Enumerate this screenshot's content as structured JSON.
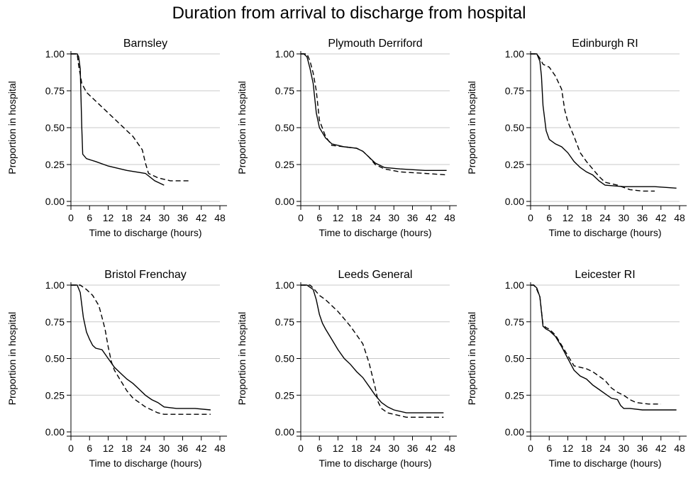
{
  "title": "Duration from arrival to discharge from hospital",
  "colors": {
    "line": "#000000",
    "grid": "#c8c8c8",
    "axis": "#000000"
  },
  "chart_data": [
    {
      "type": "line",
      "title": "Barnsley",
      "xlabel": "Time to discharge (hours)",
      "ylabel": "Proportion in hospital",
      "xlim": [
        0,
        48
      ],
      "ylim": [
        0,
        1
      ],
      "x_ticks": [
        "0",
        "6",
        "12",
        "18",
        "24",
        "30",
        "36",
        "42",
        "48"
      ],
      "y_ticks": [
        "0.00",
        "0.25",
        "0.50",
        "0.75",
        "1.00"
      ],
      "grid": "horizontal",
      "series": [
        {
          "style": "solid",
          "points": [
            [
              0,
              1
            ],
            [
              2,
              1
            ],
            [
              2.5,
              0.98
            ],
            [
              3,
              0.9
            ],
            [
              3.5,
              0.5
            ],
            [
              3.8,
              0.32
            ],
            [
              5,
              0.29
            ],
            [
              8,
              0.27
            ],
            [
              12,
              0.24
            ],
            [
              18,
              0.21
            ],
            [
              24,
              0.19
            ],
            [
              27,
              0.14
            ],
            [
              30,
              0.11
            ]
          ]
        },
        {
          "style": "dashed",
          "points": [
            [
              0,
              1
            ],
            [
              2,
              1
            ],
            [
              2.5,
              0.92
            ],
            [
              3.5,
              0.8
            ],
            [
              5,
              0.74
            ],
            [
              8,
              0.68
            ],
            [
              12,
              0.6
            ],
            [
              18,
              0.48
            ],
            [
              20,
              0.44
            ],
            [
              23,
              0.35
            ],
            [
              24,
              0.26
            ],
            [
              25,
              0.19
            ],
            [
              28,
              0.16
            ],
            [
              32,
              0.14
            ],
            [
              38,
              0.14
            ]
          ]
        }
      ]
    },
    {
      "type": "line",
      "title": "Plymouth Derriford",
      "xlabel": "Time to discharge (hours)",
      "ylabel": "Proportion in hospital",
      "xlim": [
        0,
        48
      ],
      "ylim": [
        0,
        1
      ],
      "x_ticks": [
        "0",
        "6",
        "12",
        "18",
        "24",
        "30",
        "36",
        "42",
        "48"
      ],
      "y_ticks": [
        "0.00",
        "0.25",
        "0.50",
        "0.75",
        "1.00"
      ],
      "grid": "horizontal",
      "series": [
        {
          "style": "solid",
          "points": [
            [
              0,
              1
            ],
            [
              1,
              1
            ],
            [
              2,
              0.98
            ],
            [
              3,
              0.9
            ],
            [
              4,
              0.8
            ],
            [
              5,
              0.6
            ],
            [
              6,
              0.5
            ],
            [
              8,
              0.43
            ],
            [
              10,
              0.39
            ],
            [
              14,
              0.37
            ],
            [
              18,
              0.36
            ],
            [
              20,
              0.34
            ],
            [
              22,
              0.3
            ],
            [
              24,
              0.26
            ],
            [
              27,
              0.23
            ],
            [
              32,
              0.22
            ],
            [
              40,
              0.21
            ],
            [
              47,
              0.21
            ]
          ]
        },
        {
          "style": "dashed",
          "points": [
            [
              0,
              1
            ],
            [
              2,
              1
            ],
            [
              3,
              0.95
            ],
            [
              4,
              0.87
            ],
            [
              5,
              0.75
            ],
            [
              6,
              0.55
            ],
            [
              8,
              0.44
            ],
            [
              10,
              0.38
            ],
            [
              14,
              0.37
            ],
            [
              18,
              0.36
            ],
            [
              20,
              0.34
            ],
            [
              22,
              0.3
            ],
            [
              24,
              0.25
            ],
            [
              27,
              0.22
            ],
            [
              32,
              0.2
            ],
            [
              40,
              0.19
            ],
            [
              47,
              0.18
            ]
          ]
        }
      ]
    },
    {
      "type": "line",
      "title": "Edinburgh RI",
      "xlabel": "Time to discharge (hours)",
      "ylabel": "Proportion in hospital",
      "xlim": [
        0,
        48
      ],
      "ylim": [
        0,
        1
      ],
      "x_ticks": [
        "0",
        "6",
        "12",
        "18",
        "24",
        "30",
        "36",
        "42",
        "48"
      ],
      "y_ticks": [
        "0.00",
        "0.25",
        "0.50",
        "0.75",
        "1.00"
      ],
      "grid": "horizontal",
      "series": [
        {
          "style": "solid",
          "points": [
            [
              0,
              1
            ],
            [
              2,
              1
            ],
            [
              3,
              0.95
            ],
            [
              3.5,
              0.85
            ],
            [
              4,
              0.65
            ],
            [
              5,
              0.48
            ],
            [
              6,
              0.42
            ],
            [
              8,
              0.39
            ],
            [
              10,
              0.37
            ],
            [
              12,
              0.33
            ],
            [
              14,
              0.27
            ],
            [
              16,
              0.23
            ],
            [
              18,
              0.2
            ],
            [
              20,
              0.18
            ],
            [
              22,
              0.14
            ],
            [
              24,
              0.11
            ],
            [
              30,
              0.1
            ],
            [
              40,
              0.1
            ],
            [
              47,
              0.09
            ]
          ]
        },
        {
          "style": "dashed",
          "points": [
            [
              0,
              1
            ],
            [
              2,
              1
            ],
            [
              3,
              0.97
            ],
            [
              4,
              0.93
            ],
            [
              6,
              0.91
            ],
            [
              8,
              0.85
            ],
            [
              10,
              0.76
            ],
            [
              11,
              0.62
            ],
            [
              12,
              0.54
            ],
            [
              14,
              0.44
            ],
            [
              16,
              0.33
            ],
            [
              18,
              0.27
            ],
            [
              20,
              0.22
            ],
            [
              22,
              0.17
            ],
            [
              24,
              0.13
            ],
            [
              28,
              0.11
            ],
            [
              32,
              0.08
            ],
            [
              36,
              0.07
            ],
            [
              40,
              0.07
            ]
          ]
        }
      ]
    },
    {
      "type": "line",
      "title": "Bristol Frenchay",
      "xlabel": "Time to discharge (hours)",
      "ylabel": "Proportion in hospital",
      "xlim": [
        0,
        48
      ],
      "ylim": [
        0,
        1
      ],
      "x_ticks": [
        "0",
        "6",
        "12",
        "18",
        "24",
        "30",
        "36",
        "42",
        "48"
      ],
      "y_ticks": [
        "0.00",
        "0.25",
        "0.50",
        "0.75",
        "1.00"
      ],
      "grid": "horizontal",
      "series": [
        {
          "style": "solid",
          "points": [
            [
              0,
              1
            ],
            [
              2,
              1
            ],
            [
              3,
              0.95
            ],
            [
              4,
              0.78
            ],
            [
              5,
              0.68
            ],
            [
              6,
              0.63
            ],
            [
              7,
              0.59
            ],
            [
              8,
              0.57
            ],
            [
              10,
              0.56
            ],
            [
              12,
              0.5
            ],
            [
              14,
              0.44
            ],
            [
              16,
              0.4
            ],
            [
              18,
              0.36
            ],
            [
              20,
              0.33
            ],
            [
              22,
              0.29
            ],
            [
              24,
              0.25
            ],
            [
              26,
              0.22
            ],
            [
              28,
              0.2
            ],
            [
              30,
              0.17
            ],
            [
              34,
              0.16
            ],
            [
              40,
              0.16
            ],
            [
              45,
              0.15
            ]
          ]
        },
        {
          "style": "dashed",
          "points": [
            [
              0,
              1
            ],
            [
              3,
              1
            ],
            [
              5,
              0.97
            ],
            [
              7,
              0.93
            ],
            [
              9,
              0.86
            ],
            [
              10,
              0.78
            ],
            [
              11,
              0.7
            ],
            [
              12,
              0.58
            ],
            [
              13,
              0.48
            ],
            [
              14,
              0.42
            ],
            [
              16,
              0.35
            ],
            [
              18,
              0.28
            ],
            [
              20,
              0.23
            ],
            [
              22,
              0.2
            ],
            [
              24,
              0.17
            ],
            [
              26,
              0.15
            ],
            [
              28,
              0.13
            ],
            [
              30,
              0.12
            ],
            [
              36,
              0.12
            ],
            [
              45,
              0.12
            ]
          ]
        }
      ]
    },
    {
      "type": "line",
      "title": "Leeds General",
      "xlabel": "Time to discharge (hours)",
      "ylabel": "Proportion in hospital",
      "xlim": [
        0,
        48
      ],
      "ylim": [
        0,
        1
      ],
      "x_ticks": [
        "0",
        "6",
        "12",
        "18",
        "24",
        "30",
        "36",
        "42",
        "48"
      ],
      "y_ticks": [
        "0.00",
        "0.25",
        "0.50",
        "0.75",
        "1.00"
      ],
      "grid": "horizontal",
      "series": [
        {
          "style": "solid",
          "points": [
            [
              0,
              1
            ],
            [
              2,
              1
            ],
            [
              4,
              0.97
            ],
            [
              5,
              0.9
            ],
            [
              6,
              0.8
            ],
            [
              7,
              0.74
            ],
            [
              8,
              0.7
            ],
            [
              10,
              0.63
            ],
            [
              12,
              0.56
            ],
            [
              14,
              0.5
            ],
            [
              16,
              0.46
            ],
            [
              18,
              0.41
            ],
            [
              20,
              0.37
            ],
            [
              22,
              0.31
            ],
            [
              24,
              0.25
            ],
            [
              26,
              0.2
            ],
            [
              28,
              0.17
            ],
            [
              30,
              0.15
            ],
            [
              34,
              0.13
            ],
            [
              40,
              0.13
            ],
            [
              46,
              0.13
            ]
          ]
        },
        {
          "style": "dashed",
          "points": [
            [
              0,
              1
            ],
            [
              3,
              1
            ],
            [
              4,
              0.98
            ],
            [
              6,
              0.93
            ],
            [
              8,
              0.9
            ],
            [
              10,
              0.86
            ],
            [
              12,
              0.82
            ],
            [
              14,
              0.77
            ],
            [
              16,
              0.72
            ],
            [
              18,
              0.66
            ],
            [
              20,
              0.6
            ],
            [
              22,
              0.47
            ],
            [
              24,
              0.3
            ],
            [
              25,
              0.2
            ],
            [
              26,
              0.16
            ],
            [
              28,
              0.13
            ],
            [
              30,
              0.12
            ],
            [
              34,
              0.1
            ],
            [
              40,
              0.1
            ],
            [
              46,
              0.1
            ]
          ]
        }
      ]
    },
    {
      "type": "line",
      "title": "Leicester RI",
      "xlabel": "Time to discharge (hours)",
      "ylabel": "Proportion in hospital",
      "xlim": [
        0,
        48
      ],
      "ylim": [
        0,
        1
      ],
      "x_ticks": [
        "0",
        "6",
        "12",
        "18",
        "24",
        "30",
        "36",
        "42",
        "48"
      ],
      "y_ticks": [
        "0.00",
        "0.25",
        "0.50",
        "0.75",
        "1.00"
      ],
      "grid": "horizontal",
      "series": [
        {
          "style": "solid",
          "points": [
            [
              0,
              1
            ],
            [
              1,
              1
            ],
            [
              2,
              0.98
            ],
            [
              3,
              0.92
            ],
            [
              4,
              0.72
            ],
            [
              5,
              0.7
            ],
            [
              6,
              0.69
            ],
            [
              8,
              0.65
            ],
            [
              10,
              0.58
            ],
            [
              12,
              0.5
            ],
            [
              14,
              0.42
            ],
            [
              16,
              0.38
            ],
            [
              18,
              0.36
            ],
            [
              20,
              0.32
            ],
            [
              22,
              0.29
            ],
            [
              24,
              0.26
            ],
            [
              26,
              0.23
            ],
            [
              28,
              0.22
            ],
            [
              29,
              0.18
            ],
            [
              30,
              0.16
            ],
            [
              32,
              0.16
            ],
            [
              36,
              0.15
            ],
            [
              40,
              0.15
            ],
            [
              47,
              0.15
            ]
          ]
        },
        {
          "style": "dashed",
          "points": [
            [
              0,
              1
            ],
            [
              1,
              1
            ],
            [
              2,
              0.97
            ],
            [
              3,
              0.92
            ],
            [
              4,
              0.73
            ],
            [
              5,
              0.71
            ],
            [
              6,
              0.7
            ],
            [
              8,
              0.66
            ],
            [
              10,
              0.59
            ],
            [
              12,
              0.52
            ],
            [
              14,
              0.45
            ],
            [
              16,
              0.44
            ],
            [
              18,
              0.43
            ],
            [
              20,
              0.41
            ],
            [
              22,
              0.38
            ],
            [
              24,
              0.35
            ],
            [
              26,
              0.3
            ],
            [
              28,
              0.27
            ],
            [
              30,
              0.25
            ],
            [
              32,
              0.22
            ],
            [
              34,
              0.2
            ],
            [
              38,
              0.19
            ],
            [
              42,
              0.19
            ]
          ]
        }
      ]
    }
  ]
}
